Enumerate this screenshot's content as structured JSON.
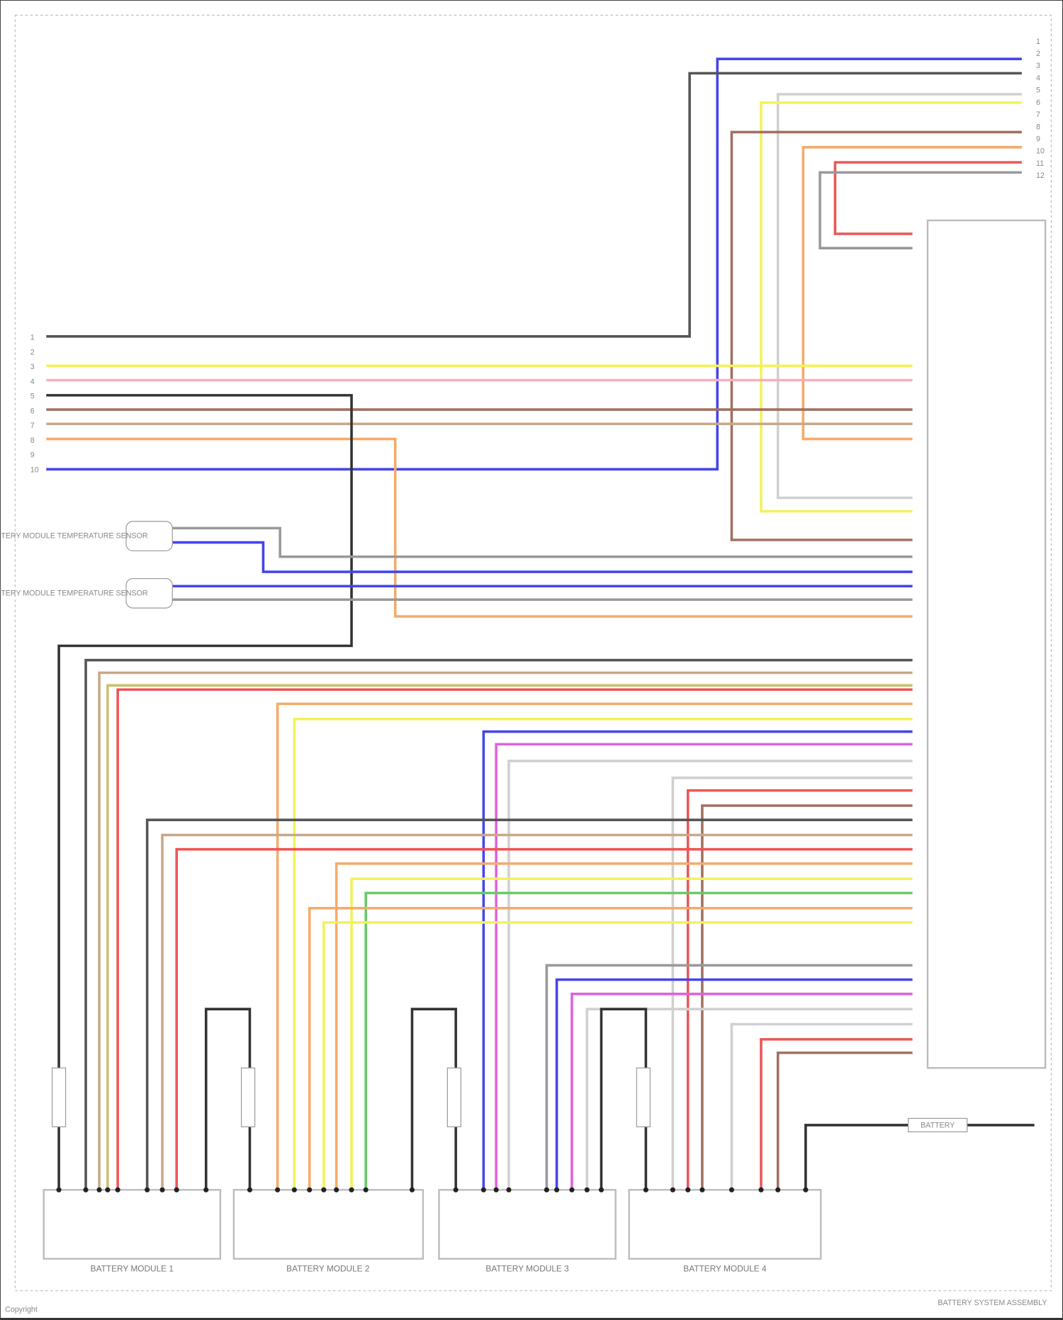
{
  "diagram": {
    "modules": [
      "BATTERY MODULE 1",
      "BATTERY MODULE 2",
      "BATTERY MODULE 3",
      "BATTERY MODULE 4"
    ],
    "sensors": [
      "BATTERY MODULE TEMPERATURE SENSOR",
      "BATTERY MODULE TEMPERATURE SENSOR"
    ],
    "fuse_label": "BATTERY",
    "footer_right": "BATTERY SYSTEM ASSEMBLY",
    "footer_left": "Copyright"
  },
  "colors": {
    "blue": "#4444ee",
    "dkgray": "#555555",
    "yellow": "#f2f25a",
    "ltgray": "#d0d0d0",
    "brown": "#a07060",
    "orange": "#f5aa6a",
    "red": "#ee5555",
    "gray": "#999999",
    "pink": "#f5b0c0",
    "tan": "#c8a888",
    "olive": "#c8c070",
    "magenta": "#e060e0",
    "green": "#66cc66",
    "black": "#333333"
  }
}
